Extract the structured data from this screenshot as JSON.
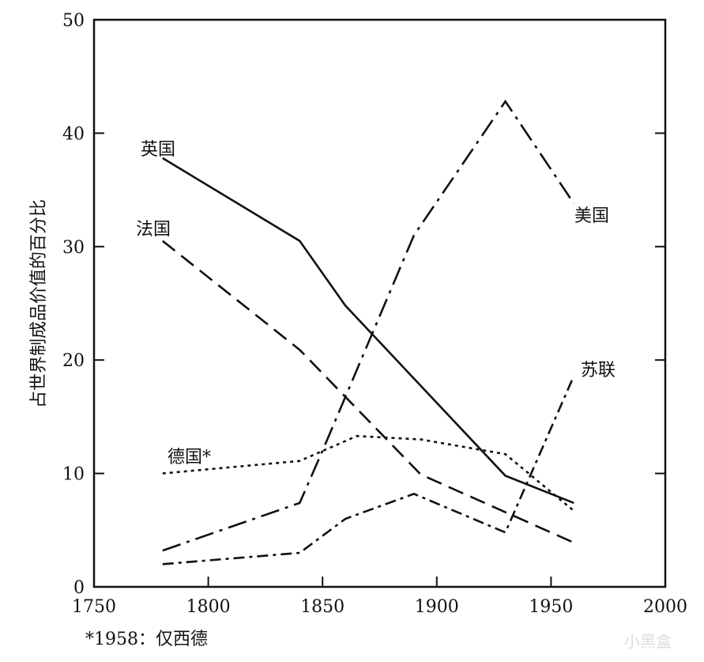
{
  "chart_data": {
    "type": "line",
    "title": "",
    "xlabel": "",
    "ylabel": "占世界制成品价值的百分比",
    "xlim": [
      1750,
      2000
    ],
    "ylim": [
      0,
      50
    ],
    "xticks": [
      1750,
      1800,
      1850,
      1900,
      1950,
      2000
    ],
    "yticks": [
      0,
      10,
      20,
      30,
      40,
      50
    ],
    "grid": false,
    "legend": "inline labels",
    "series": [
      {
        "name": "英国",
        "style": "solid",
        "x": [
          1780,
          1840,
          1860,
          1930,
          1960
        ],
        "y": [
          37.8,
          30.5,
          24.8,
          9.8,
          7.4
        ]
      },
      {
        "name": "法国",
        "style": "dashed",
        "x": [
          1780,
          1840,
          1893,
          1960
        ],
        "y": [
          30.5,
          20.9,
          9.9,
          3.9
        ]
      },
      {
        "name": "美国",
        "style": "long-dash-dot",
        "x": [
          1780,
          1840,
          1850,
          1890,
          1930,
          1960
        ],
        "y": [
          3.2,
          7.4,
          12.0,
          31.0,
          42.8,
          33.8
        ]
      },
      {
        "name": "德国*",
        "style": "dotted",
        "x": [
          1780,
          1840,
          1865,
          1893,
          1930,
          1960
        ],
        "y": [
          10.0,
          11.1,
          13.3,
          13.0,
          11.7,
          6.7
        ]
      },
      {
        "name": "苏联",
        "style": "dash-dot",
        "x": [
          1780,
          1840,
          1860,
          1890,
          1930,
          1960
        ],
        "y": [
          2.0,
          3.0,
          6.0,
          8.2,
          4.8,
          18.6
        ]
      }
    ],
    "footnote": "*1958：仅西德"
  },
  "watermark": "小黑盒"
}
